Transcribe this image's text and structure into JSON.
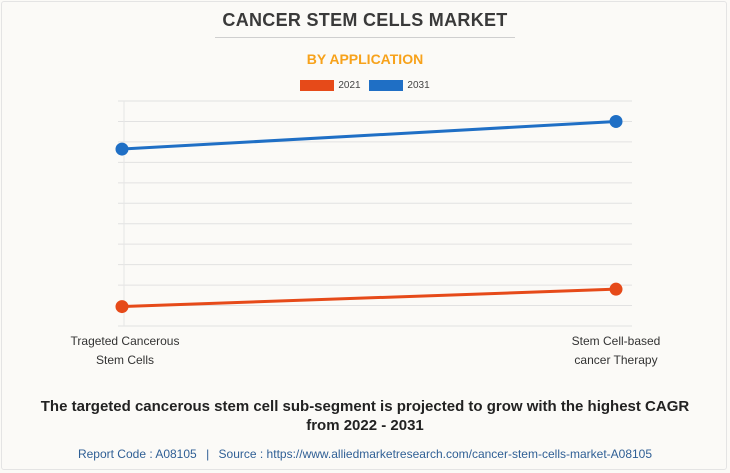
{
  "title": "CANCER STEM CELLS MARKET",
  "subtitle": "BY APPLICATION",
  "footnote": "The targeted cancerous stem cell sub-segment is projected to grow with the highest CAGR from 2022 - 2031",
  "source": {
    "report_code": "Report Code : A08105",
    "separator": "|",
    "url": "Source : https://www.alliedmarketresearch.com/cancer-stem-cells-market-A08105"
  },
  "colors": {
    "series_2021": "#e64a19",
    "series_2031": "#1f6fc5",
    "grid": "#e2e2e2"
  },
  "chart_data": {
    "type": "line",
    "categories": [
      [
        "Trageted Cancerous",
        "Stem Cells"
      ],
      [
        "Stem Cell-based",
        "cancer Therapy"
      ]
    ],
    "series": [
      {
        "name": "2021",
        "values": [
          5.9,
          7.6
        ],
        "color": "#e64a19"
      },
      {
        "name": "2031",
        "values": [
          21.3,
          24.0
        ],
        "color": "#1f6fc5"
      }
    ],
    "ylim": [
      4,
      26
    ],
    "grid": true,
    "legend": "top-center",
    "xlabel": "",
    "ylabel": ""
  }
}
